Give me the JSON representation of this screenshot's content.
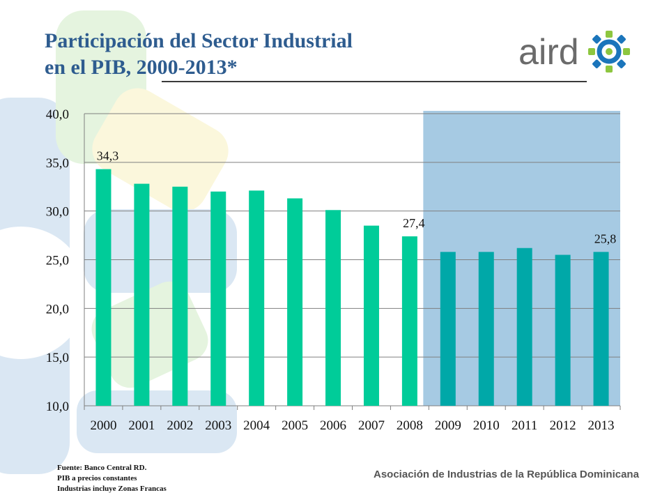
{
  "slide": {
    "title_line1": "Participación del Sector Industrial",
    "title_line2": "en el PIB, 2000-2013*",
    "logo_text": "aird",
    "footnotes": [
      "Fuente: Banco Central RD.",
      "PIB a precios constantes",
      "Industrias incluye Zonas Francas"
    ],
    "org_name": "Asociación de Industrias de la República Dominicana"
  },
  "colors": {
    "title": "#2e5c8f",
    "bar_early": "#00cc99",
    "bar_late": "#00a8a8",
    "highlight": "#a6cae3",
    "logo_gray": "#6b6b6b",
    "logo_gear_green": "#8dc63f",
    "logo_gear_blue": "#1b75bb"
  },
  "chart_data": {
    "type": "bar",
    "categories": [
      "2000",
      "2001",
      "2002",
      "2003",
      "2004",
      "2005",
      "2006",
      "2007",
      "2008",
      "2009",
      "2010",
      "2011",
      "2012",
      "2013"
    ],
    "values": [
      34.3,
      32.8,
      32.5,
      32.0,
      32.1,
      31.3,
      30.1,
      28.5,
      27.4,
      25.8,
      25.8,
      26.2,
      25.5,
      25.8
    ],
    "data_labels": [
      {
        "index": 0,
        "text": "34,3"
      },
      {
        "index": 8,
        "text": "27,4"
      },
      {
        "index": 13,
        "text": "25,8"
      }
    ],
    "yticks": [
      "10,0",
      "15,0",
      "20,0",
      "25,0",
      "30,0",
      "35,0",
      "40,0"
    ],
    "ylim": [
      10,
      40
    ],
    "grid": true,
    "highlight_from_category": "2009"
  }
}
